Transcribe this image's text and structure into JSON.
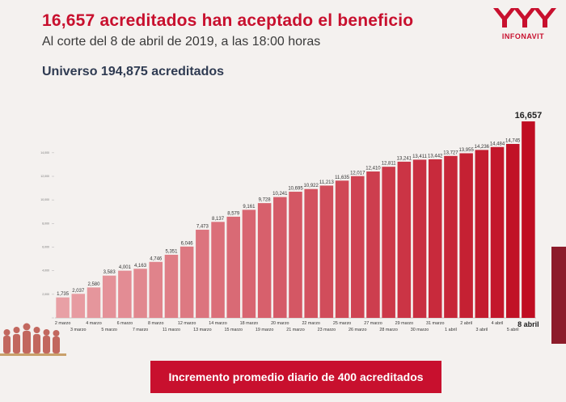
{
  "header": {
    "title": "16,657 acreditados han aceptado el beneficio",
    "subtitle": "Al corte del 8 de abril de 2019, a las 18:00 horas",
    "universe": "Universo 194,875 acreditados"
  },
  "logo": {
    "text": "INFONAVIT"
  },
  "banner": {
    "text": "Incremento promedio diario de 400 acreditados"
  },
  "colors": {
    "accent": "#c8102e",
    "bar_light": "#e8a0a5",
    "bar_dark": "#c00d22"
  },
  "chart_data": {
    "type": "bar",
    "title": "",
    "xlabel": "",
    "ylabel": "",
    "ylim": [
      0,
      16800
    ],
    "yticks": [
      0,
      2000,
      4000,
      6000,
      8000,
      10000,
      12000,
      14000
    ],
    "ytick_labels": [
      "",
      "2,000",
      "4,000",
      "6,000",
      "8,000",
      "10,000",
      "12,000",
      "14,000"
    ],
    "categories": [
      "2 marzo",
      "3 marzo",
      "4 marzo",
      "5 marzo",
      "6 marzo",
      "7 marzo",
      "8 marzo",
      "11 marzo",
      "12 marzo",
      "13 marzo",
      "14 marzo",
      "15 marzo",
      "18 marzo",
      "19 marzo",
      "20 marzo",
      "21 marzo",
      "22 marzo",
      "23 marzo",
      "25 marzo",
      "26 marzo",
      "27 marzo",
      "28 marzo",
      "29 marzo",
      "30 marzo",
      "31 marzo",
      "1 abril",
      "2 abril",
      "3 abril",
      "4 abril",
      "5 abril",
      "8 abril"
    ],
    "values": [
      1735,
      2037,
      2580,
      3583,
      4001,
      4163,
      4746,
      5351,
      6046,
      7473,
      8137,
      8579,
      9161,
      9728,
      10241,
      10695,
      10922,
      11213,
      11635,
      12017,
      12410,
      12811,
      13241,
      13411,
      13442,
      13727,
      13955,
      14236,
      14484,
      14745,
      16657
    ],
    "value_labels": [
      "1,735",
      "2,037",
      "2,580",
      "3,583",
      "4,001",
      "4,163",
      "4,746",
      "5,351",
      "6,046",
      "7,473",
      "8,137",
      "8,579",
      "9,161",
      "9,728",
      "10,241",
      "10,695",
      "10,922",
      "11,213",
      "11,635",
      "12,017",
      "12,410",
      "12,811",
      "13,241",
      "13,411",
      "13,442",
      "13,727",
      "13,955",
      "14,236",
      "14,484",
      "14,745",
      "16,657"
    ]
  }
}
